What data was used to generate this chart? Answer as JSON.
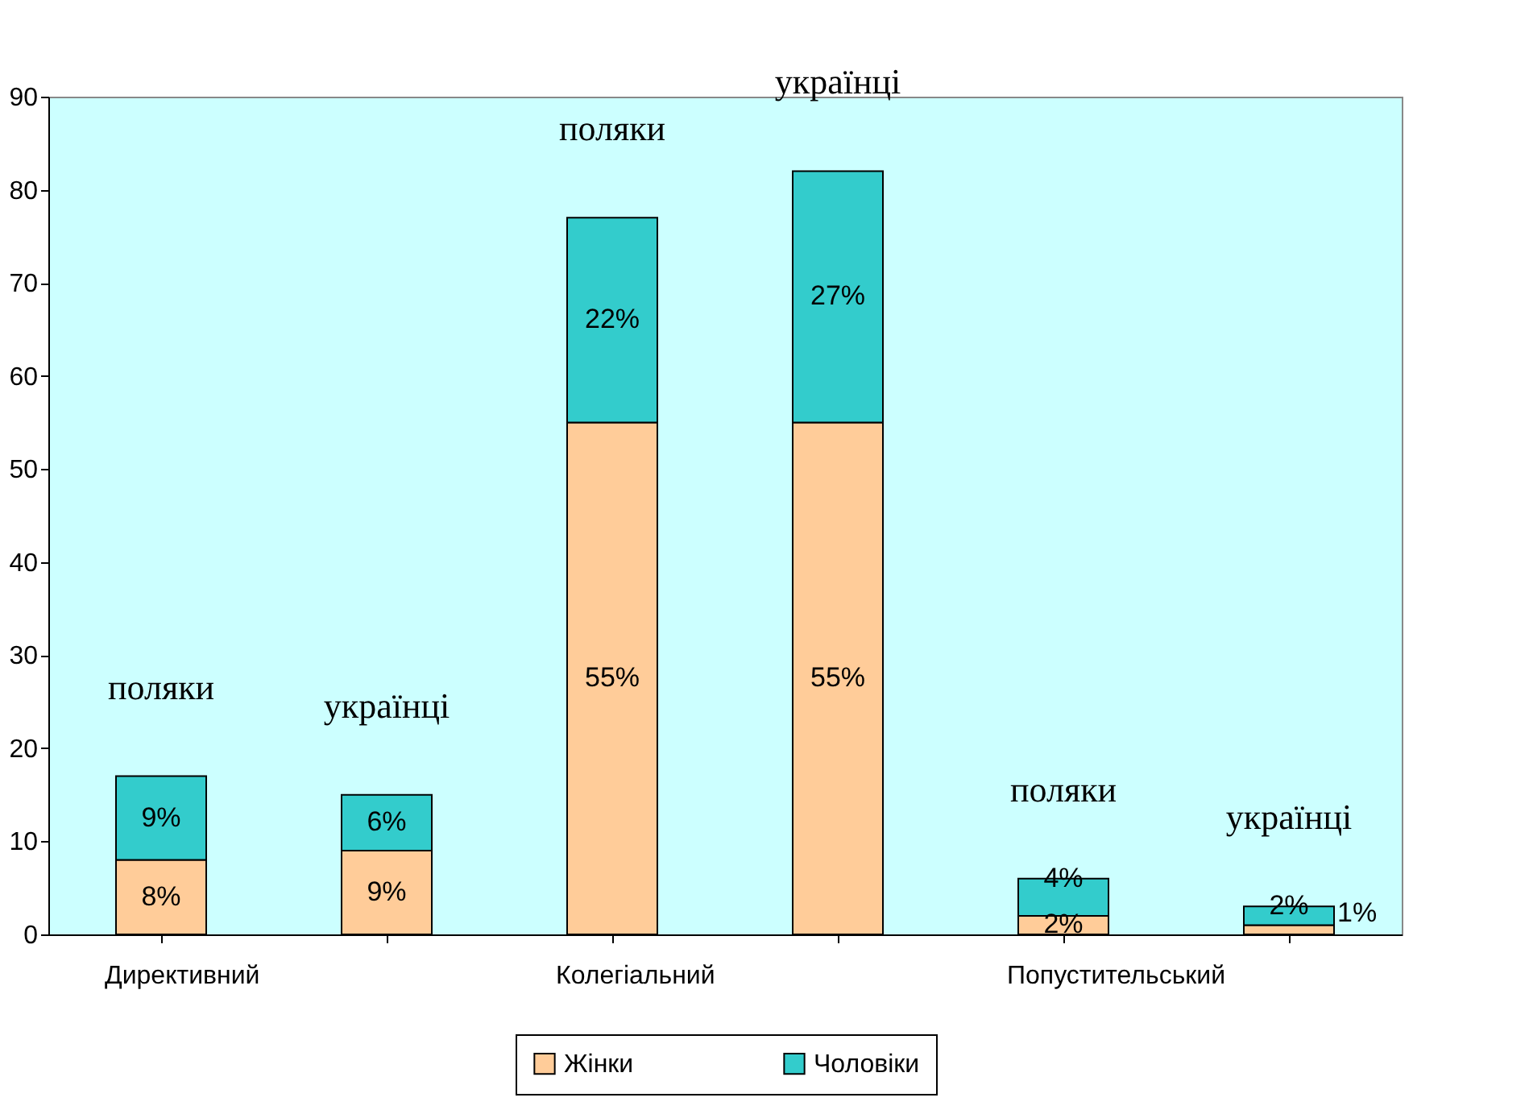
{
  "chart_data": {
    "type": "bar",
    "stacked": true,
    "categories": [
      "Директивний",
      null,
      "Колегіальний",
      null,
      "Попустительський",
      null
    ],
    "series": [
      {
        "name": "Жінки",
        "color": "#ffcc99",
        "values": [
          8,
          9,
          55,
          55,
          2,
          1
        ],
        "value_labels": [
          "8%",
          "9%",
          "55%",
          "55%",
          "2%",
          "1%"
        ]
      },
      {
        "name": "Чоловіки",
        "color": "#33cccc",
        "values": [
          9,
          6,
          22,
          27,
          4,
          2
        ],
        "value_labels": [
          "9%",
          "6%",
          "22%",
          "27%",
          "4%",
          "2%"
        ]
      }
    ],
    "annotations": [
      "поляки",
      "українці",
      "поляки",
      "українці",
      "поляки",
      "українці"
    ],
    "ylim": [
      0,
      90
    ],
    "yticks": [
      0,
      10,
      20,
      30,
      40,
      50,
      60,
      70,
      80,
      90
    ],
    "grid": false,
    "legend": "bottom"
  }
}
